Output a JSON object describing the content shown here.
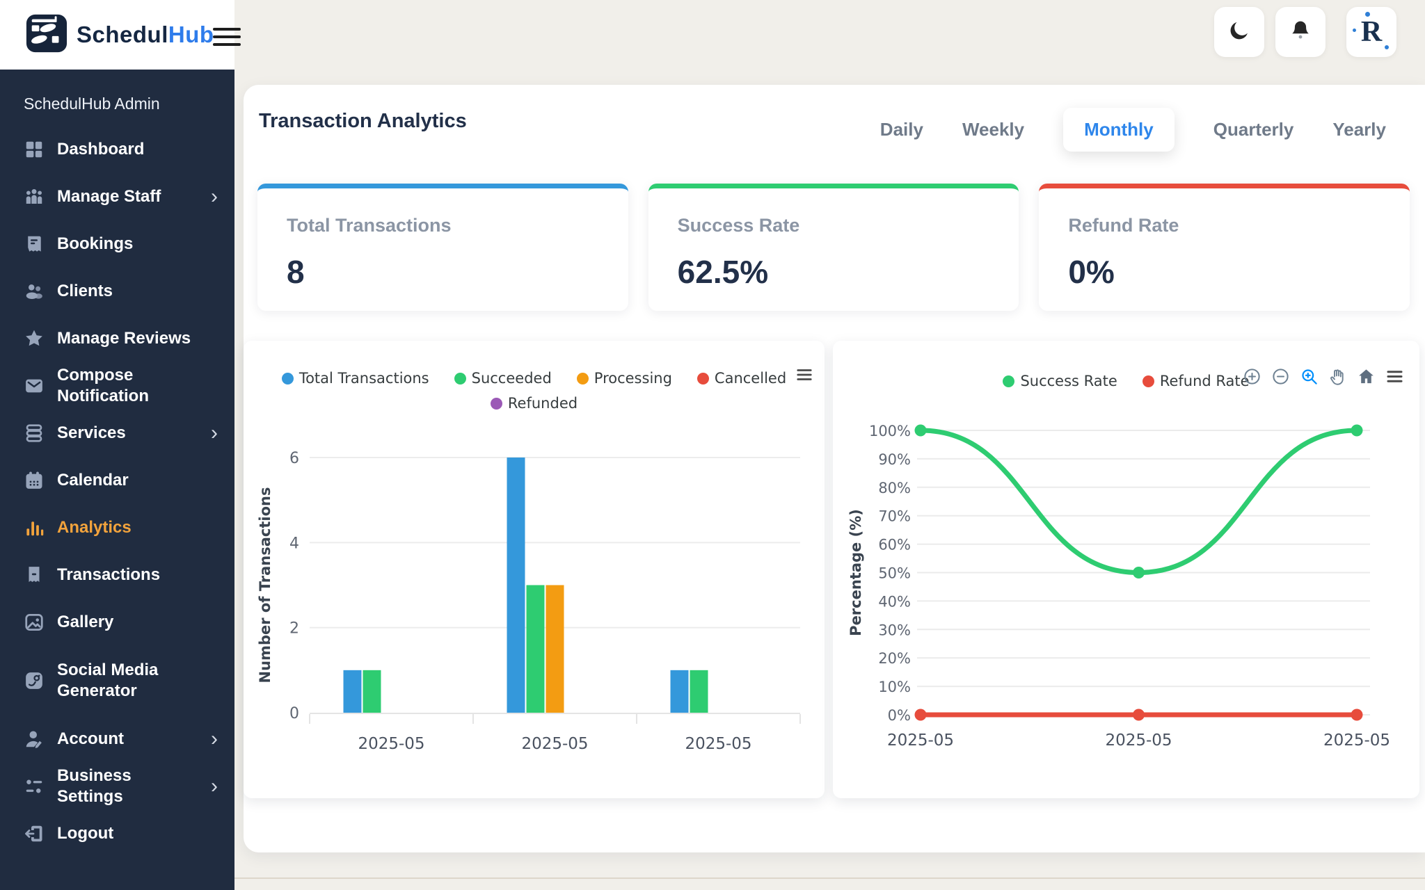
{
  "brand": {
    "logo_primary": "Schedul",
    "logo_secondary": "Hub",
    "logo_secondary_color": "#2e7ceb"
  },
  "header": {
    "buttons": [
      {
        "icon": "moon"
      },
      {
        "icon": "bell"
      },
      {
        "icon": "avatar-monogram",
        "monogram": "R"
      }
    ]
  },
  "sidebar": {
    "admin_label": "SchedulHub Admin",
    "active_color": "#f2a33c",
    "items": [
      {
        "label": "Dashboard",
        "icon": "dashboard-icon"
      },
      {
        "label": "Manage Staff",
        "icon": "staff-icon",
        "chevron": true
      },
      {
        "label": "Bookings",
        "icon": "bookings-icon"
      },
      {
        "label": "Clients",
        "icon": "clients-icon"
      },
      {
        "label": "Manage Reviews",
        "icon": "reviews-icon"
      },
      {
        "label": "Compose Notification",
        "icon": "notification-icon"
      },
      {
        "label": "Services",
        "icon": "services-icon",
        "chevron": true
      },
      {
        "label": "Calendar",
        "icon": "calendar-icon"
      },
      {
        "label": "Analytics",
        "icon": "analytics-icon",
        "active": true
      },
      {
        "label": "Transactions",
        "icon": "transactions-icon"
      },
      {
        "label": "Gallery",
        "icon": "gallery-icon"
      },
      {
        "label": "Social Media Generator",
        "icon": "social-media-icon"
      },
      {
        "label": "Account",
        "icon": "account-icon",
        "chevron": true
      },
      {
        "label": "Business Settings",
        "icon": "business-settings-icon",
        "chevron": true
      },
      {
        "label": "Logout",
        "icon": "logout-icon"
      }
    ]
  },
  "page": {
    "title": "Transaction Analytics",
    "active_tab_color": "#2e86eb",
    "tabs": [
      {
        "label": "Daily",
        "active": false
      },
      {
        "label": "Weekly",
        "active": false
      },
      {
        "label": "Monthly",
        "active": true
      },
      {
        "label": "Quarterly",
        "active": false
      },
      {
        "label": "Yearly",
        "active": false
      }
    ]
  },
  "stats": [
    {
      "label": "Total Transactions",
      "value": "8",
      "accent": "#3498db"
    },
    {
      "label": "Success Rate",
      "value": "62.5%",
      "accent": "#2ecc71"
    },
    {
      "label": "Refund Rate",
      "value": "0%",
      "accent": "#e74c3c"
    }
  ],
  "charts_toolbar": {
    "left_menu_icon": "menu",
    "right_icons": [
      "zoom-in",
      "zoom-out",
      "selection-zoom",
      "panning",
      "home",
      "menu"
    ]
  },
  "chart_data": [
    {
      "type": "bar",
      "title": "",
      "categories": [
        "2025-05",
        "2025-05",
        "2025-05"
      ],
      "series": [
        {
          "name": "Total Transactions",
          "color": "#3498db",
          "values": [
            1,
            6,
            1
          ]
        },
        {
          "name": "Succeeded",
          "color": "#2ecc71",
          "values": [
            1,
            3,
            1
          ]
        },
        {
          "name": "Processing",
          "color": "#f39c12",
          "values": [
            0,
            3,
            0
          ]
        },
        {
          "name": "Cancelled",
          "color": "#e74c3c",
          "values": [
            0,
            0,
            0
          ]
        },
        {
          "name": "Refunded",
          "color": "#9b59b6",
          "values": [
            0,
            0,
            0
          ]
        }
      ],
      "xlabel": "",
      "ylabel": "Number of Transactions",
      "ylim": [
        0,
        6
      ],
      "yticks": [
        0,
        2,
        4,
        6
      ],
      "grid": true,
      "legend_position": "top"
    },
    {
      "type": "line",
      "title": "",
      "categories": [
        "2025-05",
        "2025-05",
        "2025-05"
      ],
      "series": [
        {
          "name": "Success Rate",
          "color": "#2ecc71",
          "values": [
            100,
            50,
            100
          ]
        },
        {
          "name": "Refund Rate",
          "color": "#e74c3c",
          "values": [
            0,
            0,
            0
          ]
        }
      ],
      "xlabel": "",
      "ylabel": "Percentage (%)",
      "ylim": [
        0,
        100
      ],
      "yticks": [
        0,
        10,
        20,
        30,
        40,
        50,
        60,
        70,
        80,
        90,
        100
      ],
      "ytick_suffix": "%",
      "smooth": true,
      "grid": true,
      "legend_position": "top"
    }
  ]
}
